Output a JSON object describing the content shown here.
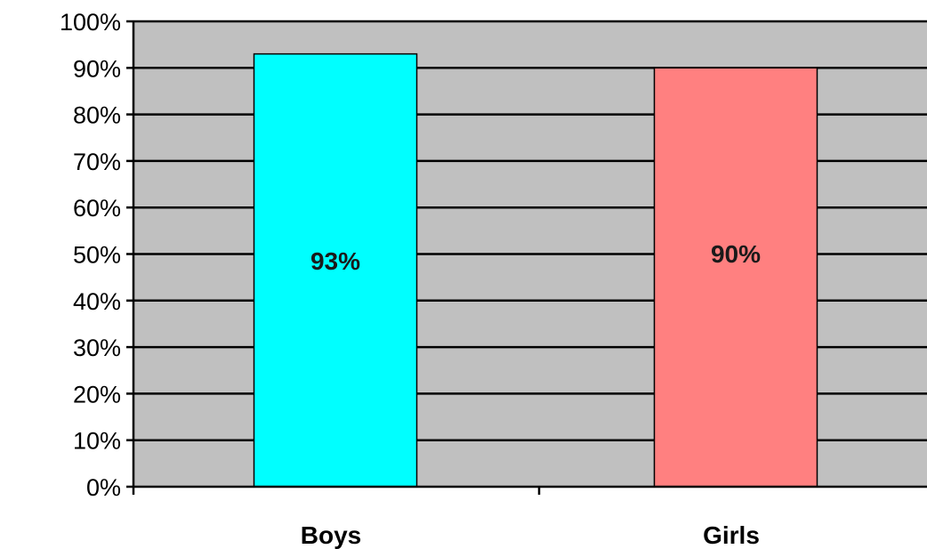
{
  "chart_data": {
    "type": "bar",
    "categories": [
      "Boys",
      "Girls"
    ],
    "values": [
      93,
      90
    ],
    "data_labels": [
      "93%",
      "90%"
    ],
    "bar_colors": [
      "#00ffff",
      "#ff8080"
    ],
    "title": "",
    "xlabel": "",
    "ylabel": "",
    "ylim": [
      0,
      100
    ],
    "y_ticks": [
      "0%",
      "10%",
      "20%",
      "30%",
      "40%",
      "50%",
      "60%",
      "70%",
      "80%",
      "90%",
      "100%"
    ],
    "grid": true,
    "legend": "none",
    "plot_background": "#c0c0c0",
    "gridline_color": "#000000"
  }
}
